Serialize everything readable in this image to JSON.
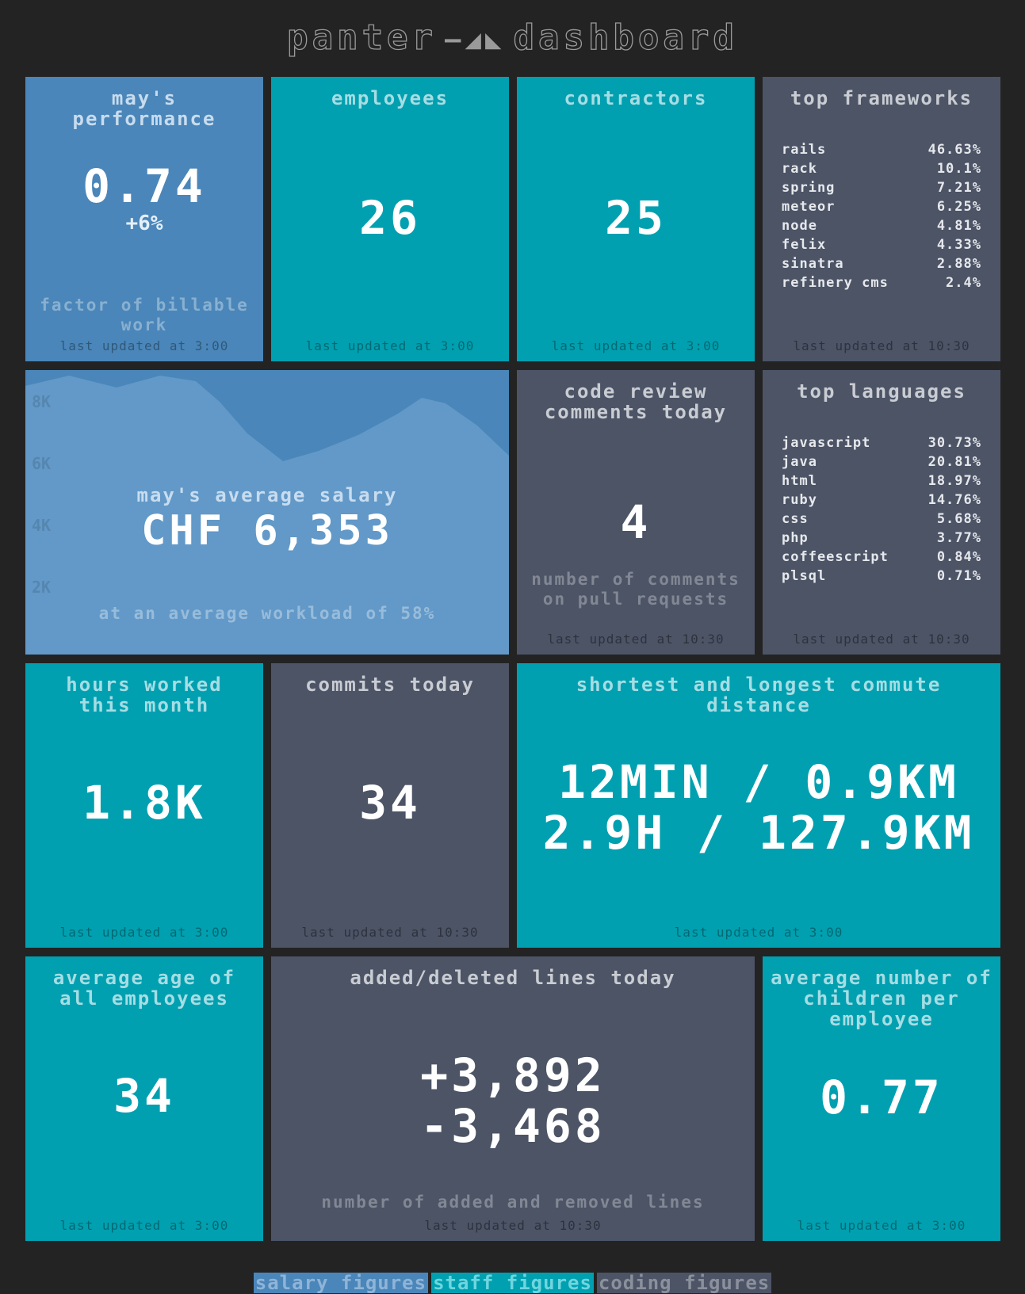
{
  "header": {
    "title_left": "panter",
    "title_right": "dashboard"
  },
  "tiles": {
    "performance": {
      "title": "may's performance",
      "value": "0.74",
      "change": "+6%",
      "more": "factor of billable work",
      "updated": "last updated at 3:00"
    },
    "employees": {
      "title": "employees",
      "value": "26",
      "updated": "last updated at 3:00"
    },
    "contractors": {
      "title": "contractors",
      "value": "25",
      "updated": "last updated at 3:00"
    },
    "frameworks": {
      "title": "top frameworks",
      "items": [
        {
          "label": "rails",
          "value": "46.63%"
        },
        {
          "label": "rack",
          "value": "10.1%"
        },
        {
          "label": "spring",
          "value": "7.21%"
        },
        {
          "label": "meteor",
          "value": "6.25%"
        },
        {
          "label": "node",
          "value": "4.81%"
        },
        {
          "label": "felix",
          "value": "4.33%"
        },
        {
          "label": "sinatra",
          "value": "2.88%"
        },
        {
          "label": "refinery cms",
          "value": "2.4%"
        }
      ],
      "updated": "last updated at 10:30"
    },
    "salary": {
      "title": "may's average salary",
      "value": "CHF 6,353",
      "more": "at an average workload of 58%",
      "yticks": [
        "8K",
        "6K",
        "4K",
        "2K"
      ]
    },
    "code_review": {
      "title": "code review comments today",
      "value": "4",
      "more": "number of comments on pull requests",
      "updated": "last updated at 10:30"
    },
    "languages": {
      "title": "top languages",
      "items": [
        {
          "label": "javascript",
          "value": "30.73%"
        },
        {
          "label": "java",
          "value": "20.81%"
        },
        {
          "label": "html",
          "value": "18.97%"
        },
        {
          "label": "ruby",
          "value": "14.76%"
        },
        {
          "label": "css",
          "value": "5.68%"
        },
        {
          "label": "php",
          "value": "3.77%"
        },
        {
          "label": "coffeescript",
          "value": "0.84%"
        },
        {
          "label": "plsql",
          "value": "0.71%"
        }
      ],
      "updated": "last updated at 10:30"
    },
    "hours": {
      "title": "hours worked this month",
      "value": "1.8K",
      "updated": "last updated at 3:00"
    },
    "commits": {
      "title": "commits today",
      "value": "34",
      "updated": "last updated at 10:30"
    },
    "commute": {
      "title": "shortest and longest commute distance",
      "line1": "12MIN / 0.9KM",
      "line2": "2.9H / 127.9KM",
      "updated": "last updated at 3:00"
    },
    "age": {
      "title": "average age of all employees",
      "value": "34",
      "updated": "last updated at 3:00"
    },
    "lines": {
      "title": "added/deleted lines today",
      "added": "+3,892",
      "deleted": "-3,468",
      "more": "number of added and removed lines",
      "updated": "last updated at 10:30"
    },
    "children": {
      "title": "average number of children per employee",
      "value": "0.77",
      "updated": "last updated at 3:00"
    }
  },
  "footer": {
    "salary": "salary figures",
    "staff": "staff figures",
    "coding": "coding figures"
  },
  "colors": {
    "background": "#232323",
    "blue": "#4a86b9",
    "teal": "#00a0b0",
    "grey": "#4c5466",
    "lightblue": "#6299c8"
  }
}
